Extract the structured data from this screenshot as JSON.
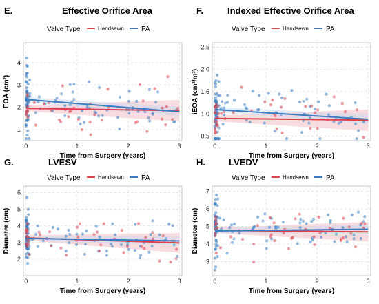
{
  "colors": {
    "handsewn": "#d9434f",
    "pa": "#3b7dbf",
    "grid": "#dcdcdc",
    "ci": "#f4c7cc"
  },
  "chart_data": [
    {
      "type": "scatter",
      "letter": "E.",
      "title": "Effective Orifice Area",
      "legend_title": "Valve Type",
      "legend_labels": [
        "Handsewn",
        "PA"
      ],
      "xlabel": "Time from Surgery (years)",
      "ylabel": "EOA (cm²)",
      "xlim": [
        -0.05,
        3.05
      ],
      "ylim": [
        0.5,
        4.9
      ],
      "xticks": [
        0,
        1,
        2,
        3
      ],
      "yticks": [
        1,
        2,
        3,
        4
      ],
      "grid": true,
      "legend_position": "top",
      "trend": {
        "handsewn": [
          1.95,
          1.85
        ],
        "pa": [
          2.35,
          1.8
        ]
      },
      "series": [
        {
          "name": "Handsewn",
          "key": "handsewn"
        },
        {
          "name": "PA",
          "key": "pa"
        }
      ]
    },
    {
      "type": "scatter",
      "letter": "F.",
      "title": "Indexed Effective Orifice Area",
      "legend_title": "Valve Type",
      "legend_labels": [
        "Handsewn",
        "PA"
      ],
      "xlabel": "Time from Surgery (years)",
      "ylabel": "iEOA (cm²/m²)",
      "xlim": [
        -0.05,
        3.05
      ],
      "ylim": [
        0.4,
        2.6
      ],
      "xticks": [
        0,
        1,
        2,
        3
      ],
      "yticks": [
        0.5,
        1.0,
        1.5,
        2.0,
        2.5
      ],
      "ytick_labels": [
        "0.5",
        "1.0",
        "1.5",
        "2.0",
        "2.5"
      ],
      "grid": true,
      "legend_position": "top",
      "trend": {
        "handsewn": [
          0.9,
          0.86
        ],
        "pa": [
          1.1,
          0.88
        ]
      },
      "series": [
        {
          "name": "Handsewn",
          "key": "handsewn"
        },
        {
          "name": "PA",
          "key": "pa"
        }
      ]
    },
    {
      "type": "scatter",
      "letter": "G.",
      "title": "LVESV",
      "legend_title": "Valve Type",
      "legend_labels": [
        "Handsewn",
        "PA"
      ],
      "xlabel": "Time from Surgery (years)",
      "ylabel": "Diameter (cm)",
      "xlim": [
        -0.05,
        3.05
      ],
      "ylim": [
        1.0,
        6.4
      ],
      "xticks": [
        0,
        1,
        2,
        3
      ],
      "yticks": [
        2,
        3,
        4,
        5,
        6
      ],
      "grid": true,
      "legend_position": "top",
      "trend": {
        "handsewn": [
          3.28,
          2.98
        ],
        "pa": [
          3.25,
          3.1
        ]
      },
      "series": [
        {
          "name": "Handsewn",
          "key": "handsewn"
        },
        {
          "name": "PA",
          "key": "pa"
        }
      ]
    },
    {
      "type": "scatter",
      "letter": "H.",
      "title": "LVEDV",
      "legend_title": "Valve Type",
      "legend_labels": [
        "Handsewn",
        "PA"
      ],
      "xlabel": "Time from Surgery (years)",
      "ylabel": "Diameter (cm)",
      "xlim": [
        -0.05,
        3.05
      ],
      "ylim": [
        2.2,
        7.3
      ],
      "xticks": [
        0,
        1,
        2,
        3
      ],
      "yticks": [
        3,
        4,
        5,
        6,
        7
      ],
      "grid": true,
      "legend_position": "top",
      "trend": {
        "handsewn": [
          4.78,
          4.7
        ],
        "pa": [
          4.75,
          4.85
        ]
      },
      "series": [
        {
          "name": "Handsewn",
          "key": "handsewn"
        },
        {
          "name": "PA",
          "key": "pa"
        }
      ]
    }
  ]
}
